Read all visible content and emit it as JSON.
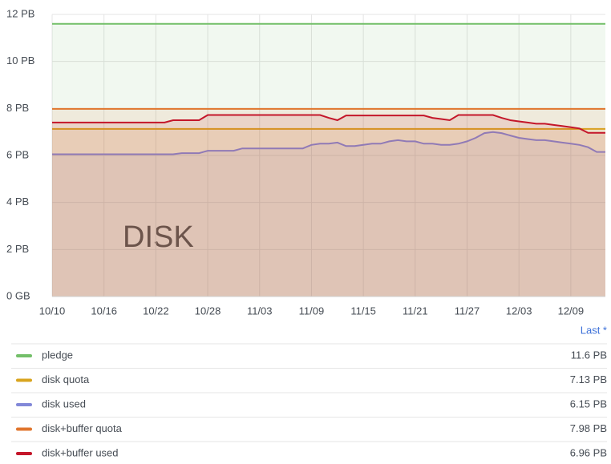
{
  "chart_data": {
    "type": "line",
    "annotation": "DISK",
    "legend_header": "Last *",
    "x": [
      "10/10",
      "10/11",
      "10/12",
      "10/13",
      "10/14",
      "10/15",
      "10/16",
      "10/17",
      "10/18",
      "10/19",
      "10/20",
      "10/21",
      "10/22",
      "10/23",
      "10/24",
      "10/25",
      "10/26",
      "10/27",
      "10/28",
      "10/29",
      "10/30",
      "10/31",
      "11/01",
      "11/02",
      "11/03",
      "11/04",
      "11/05",
      "11/06",
      "11/07",
      "11/08",
      "11/09",
      "11/10",
      "11/11",
      "11/12",
      "11/13",
      "11/14",
      "11/15",
      "11/16",
      "11/17",
      "11/18",
      "11/19",
      "11/20",
      "11/21",
      "11/22",
      "11/23",
      "11/24",
      "11/25",
      "11/26",
      "11/27",
      "11/28",
      "11/29",
      "11/30",
      "12/01",
      "12/02",
      "12/03",
      "12/04",
      "12/05",
      "12/06",
      "12/07",
      "12/08",
      "12/09",
      "12/10",
      "12/11",
      "12/12",
      "12/13"
    ],
    "xticks": [
      "10/10",
      "10/16",
      "10/22",
      "10/28",
      "11/03",
      "11/09",
      "11/15",
      "11/21",
      "11/27",
      "12/03",
      "12/09"
    ],
    "ylim": [
      0,
      12
    ],
    "yticks": [
      {
        "value": 0,
        "label": "0 GB"
      },
      {
        "value": 2,
        "label": "2 PB"
      },
      {
        "value": 4,
        "label": "4 PB"
      },
      {
        "value": 6,
        "label": "6 PB"
      },
      {
        "value": 8,
        "label": "8 PB"
      },
      {
        "value": 10,
        "label": "10 PB"
      },
      {
        "value": 12,
        "label": "12 PB"
      }
    ],
    "grid": true,
    "series": [
      {
        "name": "pledge",
        "color": "#73bf69",
        "last": "11.6 PB",
        "values": [
          11.6,
          11.6,
          11.6,
          11.6,
          11.6,
          11.6,
          11.6,
          11.6,
          11.6,
          11.6,
          11.6,
          11.6,
          11.6,
          11.6,
          11.6,
          11.6,
          11.6,
          11.6,
          11.6,
          11.6,
          11.6,
          11.6,
          11.6,
          11.6,
          11.6,
          11.6,
          11.6,
          11.6,
          11.6,
          11.6,
          11.6,
          11.6,
          11.6,
          11.6,
          11.6,
          11.6,
          11.6,
          11.6,
          11.6,
          11.6,
          11.6,
          11.6,
          11.6,
          11.6,
          11.6,
          11.6,
          11.6,
          11.6,
          11.6,
          11.6,
          11.6,
          11.6,
          11.6,
          11.6,
          11.6,
          11.6,
          11.6,
          11.6,
          11.6,
          11.6,
          11.6,
          11.6,
          11.6,
          11.6,
          11.6
        ]
      },
      {
        "name": "disk quota",
        "color": "#d9a520",
        "last": "7.13 PB",
        "values": [
          7.13,
          7.13,
          7.13,
          7.13,
          7.13,
          7.13,
          7.13,
          7.13,
          7.13,
          7.13,
          7.13,
          7.13,
          7.13,
          7.13,
          7.13,
          7.13,
          7.13,
          7.13,
          7.13,
          7.13,
          7.13,
          7.13,
          7.13,
          7.13,
          7.13,
          7.13,
          7.13,
          7.13,
          7.13,
          7.13,
          7.13,
          7.13,
          7.13,
          7.13,
          7.13,
          7.13,
          7.13,
          7.13,
          7.13,
          7.13,
          7.13,
          7.13,
          7.13,
          7.13,
          7.13,
          7.13,
          7.13,
          7.13,
          7.13,
          7.13,
          7.13,
          7.13,
          7.13,
          7.13,
          7.13,
          7.13,
          7.13,
          7.13,
          7.13,
          7.13,
          7.13,
          7.13,
          7.13,
          7.13,
          7.13
        ]
      },
      {
        "name": "disk used",
        "color": "#8288d8",
        "last": "6.15 PB",
        "values": [
          6.05,
          6.05,
          6.05,
          6.05,
          6.05,
          6.05,
          6.05,
          6.05,
          6.05,
          6.05,
          6.05,
          6.05,
          6.05,
          6.05,
          6.05,
          6.1,
          6.1,
          6.1,
          6.2,
          6.2,
          6.2,
          6.2,
          6.3,
          6.3,
          6.3,
          6.3,
          6.3,
          6.3,
          6.3,
          6.3,
          6.45,
          6.5,
          6.5,
          6.55,
          6.4,
          6.4,
          6.45,
          6.5,
          6.5,
          6.6,
          6.65,
          6.6,
          6.6,
          6.5,
          6.5,
          6.45,
          6.45,
          6.5,
          6.6,
          6.75,
          6.95,
          7.0,
          6.95,
          6.85,
          6.75,
          6.7,
          6.65,
          6.65,
          6.6,
          6.55,
          6.5,
          6.45,
          6.35,
          6.15,
          6.15
        ]
      },
      {
        "name": "disk+buffer quota",
        "color": "#e0752d",
        "last": "7.98 PB",
        "values": [
          7.98,
          7.98,
          7.98,
          7.98,
          7.98,
          7.98,
          7.98,
          7.98,
          7.98,
          7.98,
          7.98,
          7.98,
          7.98,
          7.98,
          7.98,
          7.98,
          7.98,
          7.98,
          7.98,
          7.98,
          7.98,
          7.98,
          7.98,
          7.98,
          7.98,
          7.98,
          7.98,
          7.98,
          7.98,
          7.98,
          7.98,
          7.98,
          7.98,
          7.98,
          7.98,
          7.98,
          7.98,
          7.98,
          7.98,
          7.98,
          7.98,
          7.98,
          7.98,
          7.98,
          7.98,
          7.98,
          7.98,
          7.98,
          7.98,
          7.98,
          7.98,
          7.98,
          7.98,
          7.98,
          7.98,
          7.98,
          7.98,
          7.98,
          7.98,
          7.98,
          7.98,
          7.98,
          7.98,
          7.98,
          7.98
        ]
      },
      {
        "name": "disk+buffer used",
        "color": "#c4162a",
        "last": "6.96 PB",
        "values": [
          7.4,
          7.4,
          7.4,
          7.4,
          7.4,
          7.4,
          7.4,
          7.4,
          7.4,
          7.4,
          7.4,
          7.4,
          7.4,
          7.4,
          7.5,
          7.5,
          7.5,
          7.5,
          7.72,
          7.72,
          7.72,
          7.72,
          7.72,
          7.72,
          7.72,
          7.72,
          7.72,
          7.72,
          7.72,
          7.72,
          7.72,
          7.72,
          7.6,
          7.5,
          7.7,
          7.7,
          7.7,
          7.7,
          7.7,
          7.7,
          7.7,
          7.7,
          7.7,
          7.7,
          7.6,
          7.55,
          7.5,
          7.72,
          7.72,
          7.72,
          7.72,
          7.72,
          7.6,
          7.5,
          7.45,
          7.4,
          7.35,
          7.35,
          7.3,
          7.25,
          7.2,
          7.15,
          6.96,
          6.96,
          6.96
        ]
      }
    ]
  }
}
